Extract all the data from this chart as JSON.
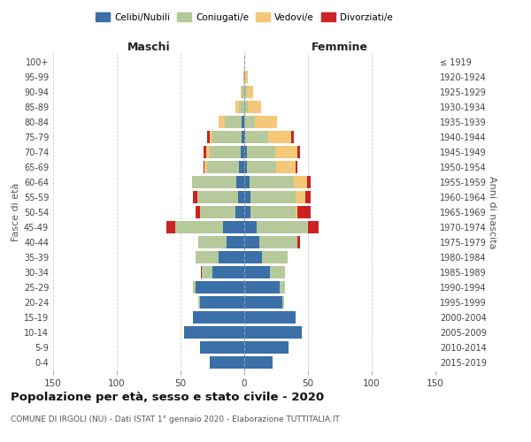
{
  "age_groups": [
    "0-4",
    "5-9",
    "10-14",
    "15-19",
    "20-24",
    "25-29",
    "30-34",
    "35-39",
    "40-44",
    "45-49",
    "50-54",
    "55-59",
    "60-64",
    "65-69",
    "70-74",
    "75-79",
    "80-84",
    "85-89",
    "90-94",
    "95-99",
    "100+"
  ],
  "birth_years": [
    "2015-2019",
    "2010-2014",
    "2005-2009",
    "2000-2004",
    "1995-1999",
    "1990-1994",
    "1985-1989",
    "1980-1984",
    "1975-1979",
    "1970-1974",
    "1965-1969",
    "1960-1964",
    "1955-1959",
    "1950-1954",
    "1945-1949",
    "1940-1944",
    "1935-1939",
    "1930-1934",
    "1925-1929",
    "1920-1924",
    "≤ 1919"
  ],
  "males": {
    "celibi": [
      27,
      35,
      47,
      40,
      35,
      38,
      25,
      20,
      14,
      17,
      7,
      5,
      6,
      4,
      3,
      2,
      2,
      0,
      0,
      0,
      0
    ],
    "coniugati": [
      0,
      0,
      0,
      0,
      1,
      2,
      8,
      18,
      22,
      37,
      28,
      32,
      35,
      25,
      24,
      23,
      13,
      4,
      2,
      1,
      0
    ],
    "vedovi": [
      0,
      0,
      0,
      0,
      0,
      0,
      0,
      0,
      0,
      0,
      0,
      0,
      0,
      2,
      3,
      2,
      5,
      3,
      1,
      0,
      0
    ],
    "divorziati": [
      0,
      0,
      0,
      0,
      0,
      0,
      1,
      0,
      0,
      7,
      3,
      3,
      0,
      1,
      2,
      2,
      0,
      0,
      0,
      0,
      0
    ]
  },
  "females": {
    "nubili": [
      22,
      35,
      45,
      40,
      30,
      28,
      20,
      14,
      12,
      10,
      5,
      5,
      4,
      2,
      2,
      1,
      0,
      0,
      0,
      0,
      0
    ],
    "coniugate": [
      0,
      0,
      0,
      0,
      1,
      4,
      12,
      20,
      30,
      40,
      35,
      35,
      35,
      23,
      22,
      18,
      8,
      3,
      2,
      1,
      0
    ],
    "vedove": [
      0,
      0,
      0,
      0,
      0,
      0,
      0,
      0,
      0,
      0,
      2,
      8,
      10,
      15,
      18,
      18,
      18,
      10,
      5,
      2,
      0
    ],
    "divorziate": [
      0,
      0,
      0,
      0,
      0,
      0,
      0,
      0,
      2,
      8,
      10,
      4,
      3,
      2,
      2,
      2,
      0,
      0,
      0,
      0,
      0
    ]
  },
  "colors": {
    "celibi": "#3a6fa8",
    "coniugati": "#b5c99a",
    "vedovi": "#f5c878",
    "divorziati": "#cc2222"
  },
  "xlim": 150,
  "title": "Popolazione per età, sesso e stato civile - 2020",
  "subtitle": "COMUNE DI IRGOLI (NU) - Dati ISTAT 1° gennaio 2020 - Elaborazione TUTTITALIA.IT",
  "ylabel_left": "Fasce di età",
  "ylabel_right": "Anni di nascita",
  "xlabel_left": "Maschi",
  "xlabel_right": "Femmine"
}
